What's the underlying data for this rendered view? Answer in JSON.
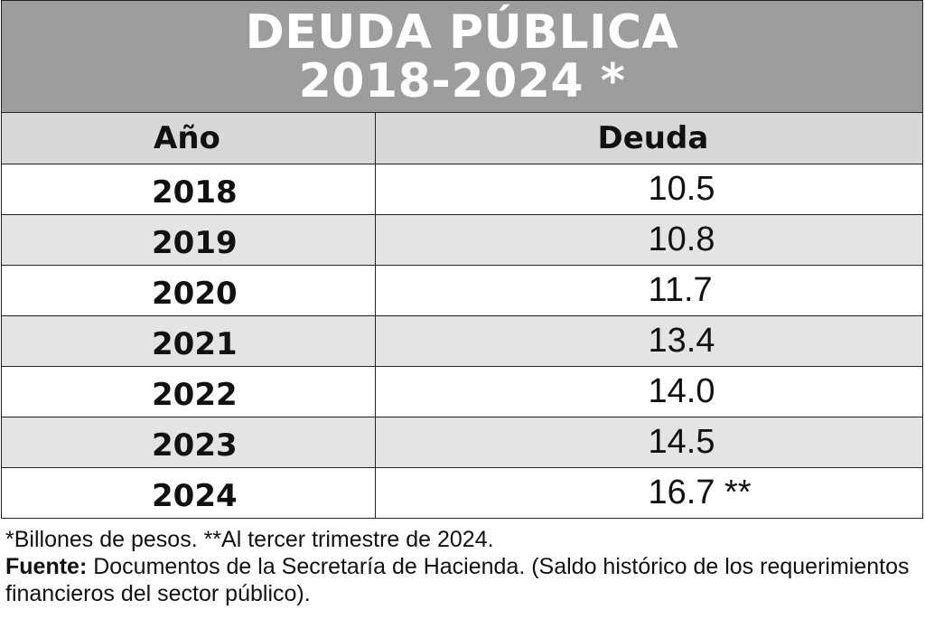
{
  "chart_data": {
    "type": "table",
    "title": "DEUDA PÚBLICA",
    "subtitle": "2018-2024 *",
    "columns": [
      "Año",
      "Deuda"
    ],
    "rows": [
      {
        "year": "2018",
        "value": "10.5"
      },
      {
        "year": "2019",
        "value": "10.8"
      },
      {
        "year": "2020",
        "value": "11.7"
      },
      {
        "year": "2021",
        "value": "13.4"
      },
      {
        "year": "2022",
        "value": "14.0"
      },
      {
        "year": "2023",
        "value": "14.5"
      },
      {
        "year": "2024",
        "value": "16.7 **"
      }
    ]
  },
  "footer": {
    "note": "*Billones de pesos. **Al tercer trimestre de 2024.",
    "source_label": "Fuente:",
    "source_text": " Documentos de la Secretaría de Hacienda. (Saldo histórico de los requerimientos financieros del sector público)."
  },
  "colors": {
    "title_bg": "#9d9d9d",
    "header_bg": "#d8d8d8",
    "alt_row_bg": "#e4e4e4"
  }
}
